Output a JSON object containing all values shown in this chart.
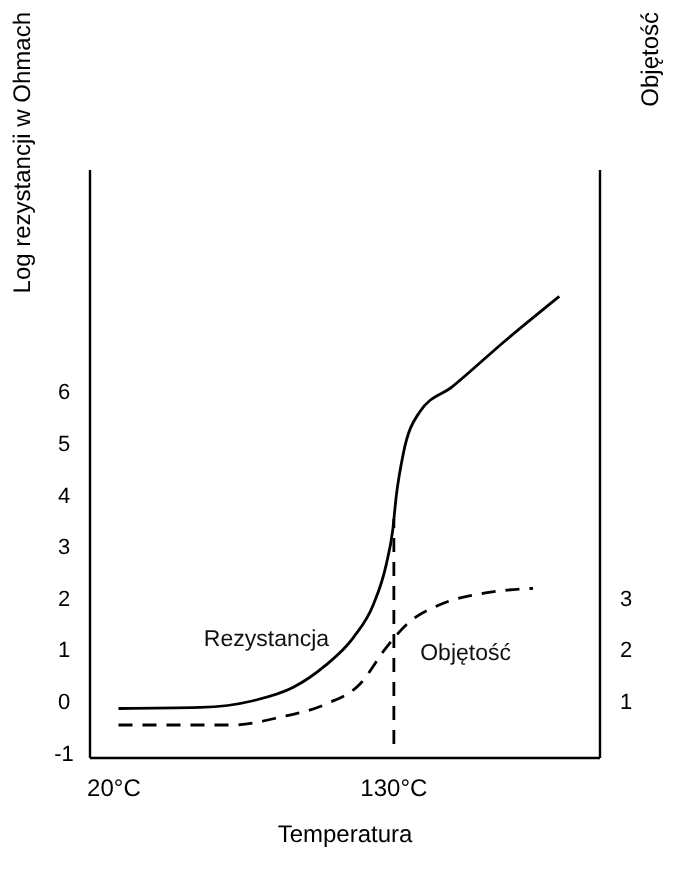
{
  "chart_data": {
    "type": "line",
    "xlabel": "Temperatura",
    "ylabel": "Log rezystancji w Ohmach",
    "y2label": "Objętość",
    "xlim": [
      10.6,
      211
    ],
    "xticks": [
      {
        "value": 20,
        "label": "20°C"
      },
      {
        "value": 130,
        "label": "130°C"
      }
    ],
    "ylim": [
      -1.1,
      10.3
    ],
    "yticks": [
      -1,
      0,
      1,
      2,
      3,
      4,
      5,
      6
    ],
    "y2lim": [
      -0.1,
      11.3
    ],
    "y2ticks": [
      1,
      2,
      3
    ],
    "grid": false,
    "marker": "none",
    "series": [
      {
        "name": "Rezystancja",
        "color": "#000000",
        "line_style": "solid",
        "x": [
          21.8,
          53.8,
          74.7,
          90.5,
          103,
          114,
          122,
          127,
          129.5,
          131,
          133.7,
          140,
          153,
          174,
          195
        ],
        "values": [
          -0.14,
          -0.12,
          0.01,
          0.27,
          0.69,
          1.23,
          1.88,
          2.65,
          3.3,
          4.0,
          4.8,
          5.6,
          6.1,
          7.0,
          7.85
        ]
      },
      {
        "name": "Objętość",
        "color": "#000000",
        "line_style": "dashed",
        "axis": "y2",
        "x": [
          21.8,
          66.9,
          85.2,
          103.5,
          116.6,
          127,
          135,
          148,
          166,
          184.7
        ],
        "values": [
          0.54,
          0.54,
          0.69,
          0.95,
          1.33,
          2.04,
          2.49,
          2.87,
          3.1,
          3.19
        ]
      }
    ],
    "ref_lines": [
      {
        "axis": "x",
        "value": 130,
        "line_style": "dashed",
        "color": "#000000"
      }
    ]
  }
}
